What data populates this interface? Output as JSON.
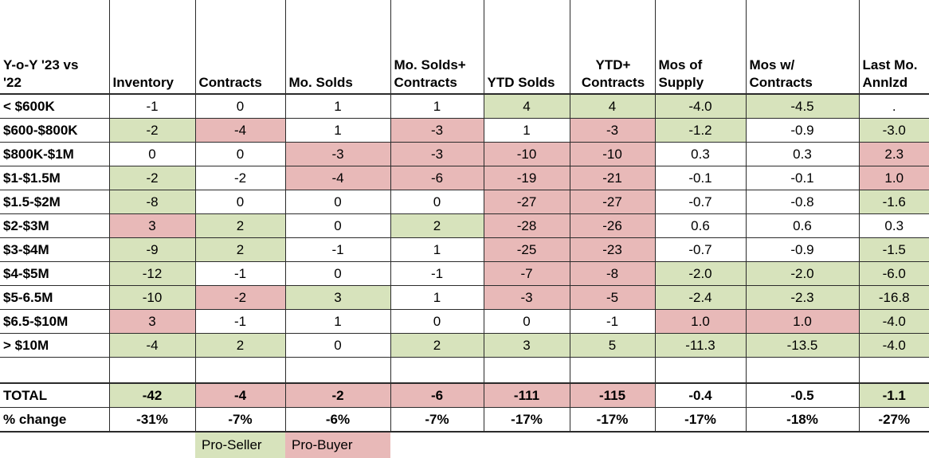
{
  "colors": {
    "pro_seller_green": "#d7e3bc",
    "pro_buyer_pink": "#e8b9b8",
    "grid_line": "#2b2b2b",
    "cell_white": "#ffffff"
  },
  "legend": {
    "pro_seller_label": "Pro-Seller",
    "pro_buyer_label": "Pro-Buyer"
  },
  "chart_data": {
    "type": "table",
    "title": "Y-o-Y '23 vs|'22",
    "columns": [
      "Inventory",
      "Contracts",
      "Mo. Solds",
      "Mo. Solds+|Contracts",
      "YTD Solds",
      "YTD+|Contracts",
      "Mos of|Supply",
      "Mos w/|Contracts",
      "Last Mo.|Annlzd"
    ],
    "highlight_key": {
      "g": "pro-seller green",
      "p": "pro-buyer pink",
      "w": "white"
    },
    "rows": [
      {
        "label": "< $600K",
        "values": [
          "-1",
          "0",
          "1",
          "1",
          "4",
          "4",
          "-4.0",
          "-4.5",
          "."
        ],
        "hl": [
          "w",
          "w",
          "w",
          "w",
          "g",
          "g",
          "g",
          "g",
          "w"
        ]
      },
      {
        "label": "$600-$800K",
        "values": [
          "-2",
          "-4",
          "1",
          "-3",
          "1",
          "-3",
          "-1.2",
          "-0.9",
          "-3.0"
        ],
        "hl": [
          "g",
          "p",
          "w",
          "p",
          "w",
          "p",
          "g",
          "w",
          "g"
        ]
      },
      {
        "label": "$800K-$1M",
        "values": [
          "0",
          "0",
          "-3",
          "-3",
          "-10",
          "-10",
          "0.3",
          "0.3",
          "2.3"
        ],
        "hl": [
          "w",
          "w",
          "p",
          "p",
          "p",
          "p",
          "w",
          "w",
          "p"
        ]
      },
      {
        "label": "$1-$1.5M",
        "values": [
          "-2",
          "-2",
          "-4",
          "-6",
          "-19",
          "-21",
          "-0.1",
          "-0.1",
          "1.0"
        ],
        "hl": [
          "g",
          "w",
          "p",
          "p",
          "p",
          "p",
          "w",
          "w",
          "p"
        ]
      },
      {
        "label": "$1.5-$2M",
        "values": [
          "-8",
          "0",
          "0",
          "0",
          "-27",
          "-27",
          "-0.7",
          "-0.8",
          "-1.6"
        ],
        "hl": [
          "g",
          "w",
          "w",
          "w",
          "p",
          "p",
          "w",
          "w",
          "g"
        ]
      },
      {
        "label": "$2-$3M",
        "values": [
          "3",
          "2",
          "0",
          "2",
          "-28",
          "-26",
          "0.6",
          "0.6",
          "0.3"
        ],
        "hl": [
          "p",
          "g",
          "w",
          "g",
          "p",
          "p",
          "w",
          "w",
          "w"
        ]
      },
      {
        "label": "$3-$4M",
        "values": [
          "-9",
          "2",
          "-1",
          "1",
          "-25",
          "-23",
          "-0.7",
          "-0.9",
          "-1.5"
        ],
        "hl": [
          "g",
          "g",
          "w",
          "w",
          "p",
          "p",
          "w",
          "w",
          "g"
        ]
      },
      {
        "label": "$4-$5M",
        "values": [
          "-12",
          "-1",
          "0",
          "-1",
          "-7",
          "-8",
          "-2.0",
          "-2.0",
          "-6.0"
        ],
        "hl": [
          "g",
          "w",
          "w",
          "w",
          "p",
          "p",
          "g",
          "g",
          "g"
        ]
      },
      {
        "label": "$5-6.5M",
        "values": [
          "-10",
          "-2",
          "3",
          "1",
          "-3",
          "-5",
          "-2.4",
          "-2.3",
          "-16.8"
        ],
        "hl": [
          "g",
          "p",
          "g",
          "w",
          "p",
          "p",
          "g",
          "g",
          "g"
        ]
      },
      {
        "label": "$6.5-$10M",
        "values": [
          "3",
          "-1",
          "1",
          "0",
          "0",
          "-1",
          "1.0",
          "1.0",
          "-4.0"
        ],
        "hl": [
          "p",
          "w",
          "w",
          "w",
          "w",
          "w",
          "p",
          "p",
          "g"
        ]
      },
      {
        "label": "> $10M",
        "values": [
          "-4",
          "2",
          "0",
          "2",
          "3",
          "5",
          "-11.3",
          "-13.5",
          "-4.0"
        ],
        "hl": [
          "g",
          "g",
          "w",
          "g",
          "g",
          "g",
          "g",
          "g",
          "g"
        ]
      }
    ],
    "total_row": {
      "label": "TOTAL",
      "values": [
        "-42",
        "-4",
        "-2",
        "-6",
        "-111",
        "-115",
        "-0.4",
        "-0.5",
        "-1.1"
      ],
      "hl": [
        "g",
        "p",
        "p",
        "p",
        "p",
        "p",
        "w",
        "w",
        "g"
      ]
    },
    "pct_row": {
      "label": "% change",
      "values": [
        "-31%",
        "-7%",
        "-6%",
        "-7%",
        "-17%",
        "-17%",
        "-17%",
        "-18%",
        "-27%"
      ],
      "hl": [
        "w",
        "w",
        "w",
        "w",
        "w",
        "w",
        "w",
        "w",
        "w"
      ]
    },
    "legend": {
      "green": "Pro-Seller",
      "pink": "Pro-Buyer"
    },
    "layout_hints": {
      "grid": "on",
      "legend_position": "bottom, under Contracts and Mo. Solds columns"
    }
  }
}
